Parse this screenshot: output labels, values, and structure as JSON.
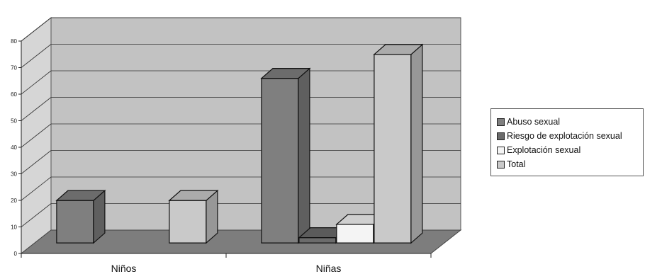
{
  "chart_data": {
    "type": "bar",
    "categories": [
      "Niños",
      "Niñas"
    ],
    "series": [
      {
        "name": "Abuso sexual",
        "values": [
          16,
          62
        ],
        "color": "#7f7f7f"
      },
      {
        "name": "Riesgo de explotación sexual",
        "values": [
          0,
          2
        ],
        "color": "#6b6b6b"
      },
      {
        "name": "Explotación sexual",
        "values": [
          0,
          7
        ],
        "color": "#f4f4f4"
      },
      {
        "name": "Total",
        "values": [
          16,
          71
        ],
        "color": "#c9c9c9"
      }
    ],
    "y_ticks": [
      "0",
      "10",
      "20",
      "30",
      "40",
      "50",
      "60",
      "70",
      "80"
    ],
    "ylim": [
      0,
      80
    ],
    "grid": true,
    "three_d": true,
    "legend_position": "right",
    "title": "",
    "xlabel": "",
    "ylabel": ""
  }
}
